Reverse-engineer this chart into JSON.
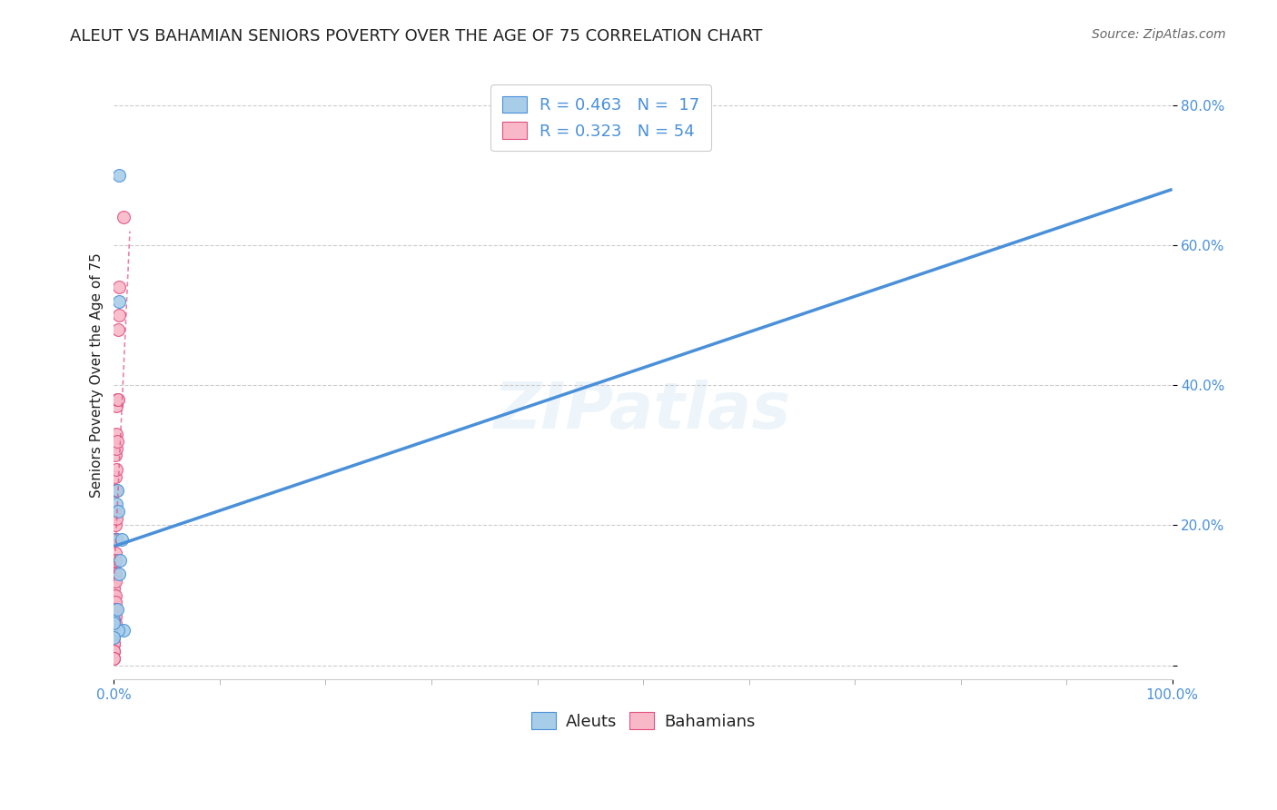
{
  "title": "ALEUT VS BAHAMIAN SENIORS POVERTY OVER THE AGE OF 75 CORRELATION CHART",
  "source": "Source: ZipAtlas.com",
  "ylabel": "Seniors Poverty Over the Age of 75",
  "watermark": "ZIPatlas",
  "legend_text_blue": "R = 0.463   N =  17",
  "legend_text_pink": "R = 0.323   N = 54",
  "legend_label_blue": "Aleuts",
  "legend_label_pink": "Bahamians",
  "aleuts_x": [
    0.0,
    0.0,
    0.0,
    0.002,
    0.002,
    0.003,
    0.004,
    0.005,
    0.006,
    0.007,
    0.005,
    0.005,
    0.009,
    0.003,
    0.004,
    0.0,
    0.0
  ],
  "aleuts_y": [
    0.05,
    0.065,
    0.045,
    0.18,
    0.23,
    0.25,
    0.22,
    0.52,
    0.15,
    0.18,
    0.7,
    0.13,
    0.05,
    0.08,
    0.05,
    0.06,
    0.04
  ],
  "bahamians_x": [
    0.0,
    0.0,
    0.0,
    0.0,
    0.0,
    0.0,
    0.0,
    0.0,
    0.0,
    0.0,
    0.0,
    0.0,
    0.0,
    0.0,
    0.0,
    0.0,
    0.0,
    0.0,
    0.0,
    0.0,
    0.0,
    0.0,
    0.0,
    0.0,
    0.001,
    0.001,
    0.001,
    0.001,
    0.001,
    0.001,
    0.001,
    0.001,
    0.001,
    0.001,
    0.001,
    0.001,
    0.001,
    0.001,
    0.001,
    0.002,
    0.002,
    0.002,
    0.002,
    0.002,
    0.002,
    0.002,
    0.003,
    0.003,
    0.004,
    0.004,
    0.005,
    0.005,
    0.009,
    0.0
  ],
  "bahamians_y": [
    0.14,
    0.13,
    0.12,
    0.11,
    0.1,
    0.09,
    0.08,
    0.07,
    0.07,
    0.06,
    0.06,
    0.05,
    0.05,
    0.04,
    0.04,
    0.04,
    0.03,
    0.03,
    0.03,
    0.02,
    0.02,
    0.02,
    0.01,
    0.01,
    0.3,
    0.27,
    0.25,
    0.22,
    0.2,
    0.18,
    0.16,
    0.15,
    0.13,
    0.12,
    0.1,
    0.09,
    0.08,
    0.07,
    0.06,
    0.37,
    0.33,
    0.31,
    0.28,
    0.25,
    0.21,
    0.18,
    0.38,
    0.32,
    0.48,
    0.38,
    0.54,
    0.5,
    0.64,
    0.01
  ],
  "blue_line_x": [
    0.0,
    1.0
  ],
  "blue_line_y": [
    0.17,
    0.68
  ],
  "pink_line_x": [
    0.0,
    0.015
  ],
  "pink_line_y": [
    0.12,
    0.62
  ],
  "color_blue": "#a8cde8",
  "color_pink": "#f9b8c8",
  "color_blue_line": "#4a90d9",
  "color_pink_line": "#e05080",
  "color_title": "#222222",
  "color_source": "#666666",
  "color_grid": "#cccccc",
  "xlim": [
    0.0,
    1.0
  ],
  "ylim": [
    -0.02,
    0.85
  ],
  "xtick_positions": [
    0.0,
    1.0
  ],
  "xtick_labels": [
    "0.0%",
    "100.0%"
  ],
  "ytick_positions": [
    0.0,
    0.2,
    0.4,
    0.6,
    0.8
  ],
  "ytick_labels": [
    "",
    "20.0%",
    "40.0%",
    "60.0%",
    "80.0%"
  ],
  "marker_size": 100,
  "title_fontsize": 13,
  "axis_label_fontsize": 11,
  "tick_fontsize": 11,
  "legend_fontsize": 13,
  "source_fontsize": 10,
  "watermark_fontsize": 52,
  "watermark_alpha": 0.13,
  "watermark_color": "#7ab8e0"
}
